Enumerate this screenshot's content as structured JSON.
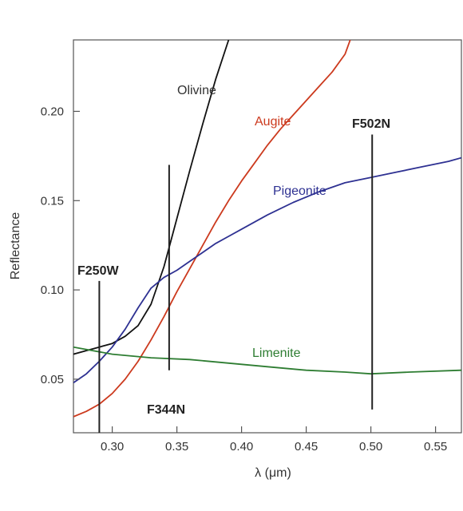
{
  "chart_data": {
    "type": "line",
    "title": "",
    "xlabel": "λ (μm)",
    "ylabel": "Reflectance",
    "xlim": [
      0.27,
      0.57
    ],
    "ylim": [
      0.02,
      0.24
    ],
    "xticks": [
      0.3,
      0.35,
      0.4,
      0.45,
      0.5,
      0.55
    ],
    "xtick_labels": [
      "0.30",
      "0.35",
      "0.40",
      "0.45",
      "0.50",
      "0.55"
    ],
    "yticks": [
      0.05,
      0.1,
      0.15,
      0.2
    ],
    "ytick_labels": [
      "0.05",
      "0.10",
      "0.15",
      "0.20"
    ],
    "grid": false,
    "legend": "none",
    "series": [
      {
        "name": "Olivine",
        "color": "#111111",
        "x": [
          0.27,
          0.28,
          0.29,
          0.3,
          0.31,
          0.32,
          0.33,
          0.34,
          0.35,
          0.36,
          0.37,
          0.38,
          0.39
        ],
        "y": [
          0.064,
          0.066,
          0.068,
          0.07,
          0.074,
          0.08,
          0.092,
          0.113,
          0.14,
          0.167,
          0.193,
          0.218,
          0.24
        ]
      },
      {
        "name": "Augite",
        "color": "#cc3a1e",
        "x": [
          0.27,
          0.28,
          0.29,
          0.3,
          0.31,
          0.32,
          0.33,
          0.34,
          0.35,
          0.36,
          0.37,
          0.38,
          0.39,
          0.4,
          0.41,
          0.42,
          0.43,
          0.44,
          0.45,
          0.46,
          0.47,
          0.48,
          0.484
        ],
        "y": [
          0.029,
          0.032,
          0.036,
          0.042,
          0.05,
          0.06,
          0.072,
          0.085,
          0.099,
          0.112,
          0.125,
          0.138,
          0.15,
          0.161,
          0.171,
          0.181,
          0.19,
          0.198,
          0.206,
          0.214,
          0.222,
          0.232,
          0.24
        ]
      },
      {
        "name": "Pigeonite",
        "color": "#2e3192",
        "x": [
          0.27,
          0.28,
          0.29,
          0.3,
          0.31,
          0.32,
          0.33,
          0.34,
          0.35,
          0.36,
          0.37,
          0.38,
          0.39,
          0.4,
          0.42,
          0.44,
          0.46,
          0.48,
          0.5,
          0.52,
          0.54,
          0.56,
          0.57
        ],
        "y": [
          0.048,
          0.053,
          0.06,
          0.068,
          0.078,
          0.09,
          0.101,
          0.107,
          0.111,
          0.116,
          0.121,
          0.126,
          0.13,
          0.134,
          0.142,
          0.149,
          0.155,
          0.16,
          0.163,
          0.166,
          0.169,
          0.172,
          0.174
        ]
      },
      {
        "name": "Limenite",
        "color": "#2e7d32",
        "x": [
          0.27,
          0.3,
          0.33,
          0.36,
          0.39,
          0.42,
          0.45,
          0.48,
          0.5,
          0.53,
          0.57
        ],
        "y": [
          0.068,
          0.064,
          0.062,
          0.061,
          0.059,
          0.057,
          0.055,
          0.054,
          0.053,
          0.054,
          0.055
        ]
      }
    ],
    "filters": [
      {
        "name": "F250W",
        "x": 0.29,
        "y_from": 0.02,
        "y_to": 0.105
      },
      {
        "name": "F344N",
        "x": 0.344,
        "y_from": 0.055,
        "y_to": 0.17
      },
      {
        "name": "F502N",
        "x": 0.501,
        "y_from": 0.033,
        "y_to": 0.187
      }
    ]
  }
}
